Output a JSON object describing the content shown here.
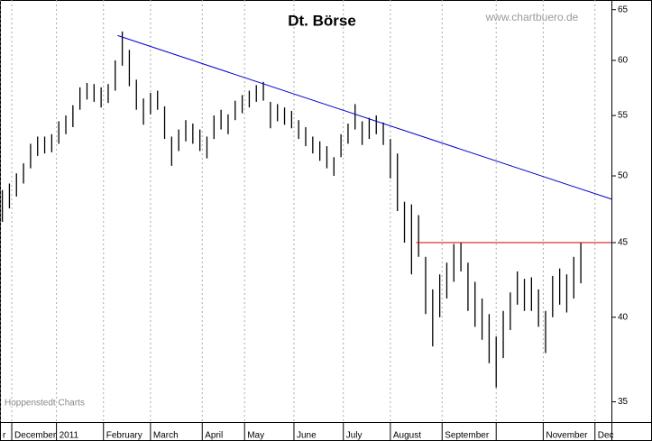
{
  "chart_data": {
    "type": "hilo",
    "title": "Dt. Börse",
    "source": "www.chartbuero.de",
    "credit": "Hoppenstedt Charts",
    "log_y": true,
    "color": "#000000",
    "x": [
      1,
      4,
      7,
      10,
      13,
      16,
      19,
      22,
      25,
      28,
      31,
      34,
      37,
      40,
      43,
      46,
      49,
      52,
      55,
      58,
      61,
      64,
      67,
      70,
      73,
      76,
      79,
      82,
      85,
      88,
      91,
      94,
      97,
      100,
      103,
      106,
      109,
      112,
      115,
      118,
      121,
      124,
      127,
      130,
      133,
      136,
      139,
      142,
      145,
      148,
      151,
      154,
      157,
      160,
      163,
      166,
      169,
      172,
      175,
      178,
      181,
      184,
      187,
      190,
      193,
      196,
      199,
      202,
      205,
      208,
      211,
      214,
      217,
      220,
      223,
      226,
      229,
      232,
      235,
      238,
      241,
      244,
      247
    ],
    "high": [
      48.9,
      49.4,
      50.2,
      51.0,
      52.6,
      53.2,
      53.2,
      53.4,
      54.5,
      55.0,
      55.9,
      57.5,
      57.9,
      57.8,
      57.5,
      57.8,
      60.0,
      62.8,
      61.0,
      58.2,
      56.5,
      57.0,
      57.2,
      55.8,
      53.2,
      53.8,
      54.6,
      54.3,
      53.8,
      53.2,
      55.0,
      55.5,
      55.1,
      56.3,
      56.8,
      57.2,
      57.7,
      58.0,
      56.2,
      56.0,
      55.7,
      55.4,
      54.6,
      54.0,
      53.2,
      52.8,
      52.4,
      51.5,
      53.4,
      54.3,
      56.0,
      54.5,
      54.8,
      55.0,
      54.4,
      53.0,
      51.8,
      48.0,
      47.8,
      47.0,
      44.0,
      41.8,
      42.8,
      43.6,
      44.9,
      45.0,
      43.6,
      42.3,
      41.2,
      40.2,
      38.8,
      40.4,
      41.6,
      43.0,
      42.5,
      42.6,
      41.8,
      40.4,
      42.7,
      43.2,
      42.8,
      44.0,
      45.0
    ],
    "low": [
      46.5,
      47.5,
      48.4,
      49.4,
      50.6,
      51.6,
      51.8,
      51.9,
      52.6,
      53.4,
      54.0,
      55.5,
      56.4,
      56.2,
      55.7,
      56.1,
      57.2,
      59.5,
      57.6,
      55.5,
      54.2,
      55.1,
      55.5,
      53.0,
      50.8,
      52.0,
      52.8,
      52.6,
      52.0,
      51.4,
      53.0,
      53.8,
      53.4,
      54.6,
      55.2,
      55.7,
      56.2,
      56.3,
      53.9,
      54.5,
      54.2,
      53.9,
      53.0,
      52.4,
      51.8,
      51.2,
      50.6,
      50.0,
      51.5,
      52.6,
      53.8,
      52.5,
      53.0,
      53.4,
      52.5,
      49.8,
      47.3,
      45.0,
      42.8,
      44.0,
      40.2,
      38.2,
      40.0,
      41.2,
      42.3,
      43.0,
      40.4,
      39.4,
      38.6,
      37.2,
      35.8,
      37.5,
      39.2,
      40.8,
      40.4,
      40.4,
      39.4,
      37.8,
      40.0,
      40.8,
      40.3,
      41.2,
      42.2
    ],
    "lines": [
      {
        "color": "#0000cc",
        "x": [
          50,
          260
        ],
        "values": [
          62.4,
          48.2
        ]
      },
      {
        "color": "#cc0000",
        "x": [
          177,
          260
        ],
        "values": [
          45,
          45
        ]
      }
    ],
    "xlim": [
      0,
      260
    ],
    "xticks": [
      {
        "value": 0,
        "label": "r"
      },
      {
        "value": 5,
        "label": "December"
      },
      {
        "value": 24,
        "label": "2011"
      },
      {
        "value": 44,
        "label": "February"
      },
      {
        "value": 64,
        "label": "March"
      },
      {
        "value": 86,
        "label": "April"
      },
      {
        "value": 104,
        "label": "May"
      },
      {
        "value": 125,
        "label": "June"
      },
      {
        "value": 146,
        "label": "July"
      },
      {
        "value": 166,
        "label": "August"
      },
      {
        "value": 188,
        "label": "September"
      },
      {
        "value": 211,
        "label": null
      },
      {
        "value": 231,
        "label": "November"
      },
      {
        "value": 253,
        "label": "Dec"
      }
    ],
    "ylim": [
      33.9,
      66
    ],
    "yticks": [
      35,
      40,
      45,
      50,
      55,
      60,
      65
    ],
    "grid": true
  }
}
